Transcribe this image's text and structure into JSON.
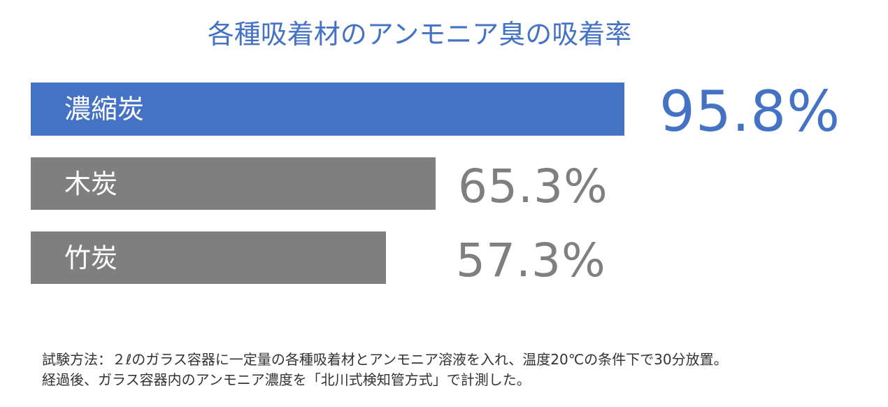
{
  "chart_data": {
    "type": "bar",
    "orientation": "horizontal",
    "title": "各種吸着材のアンモニア臭の吸着率",
    "categories": [
      "濃縮炭",
      "木炭",
      "竹炭"
    ],
    "values": [
      95.8,
      65.3,
      57.3
    ],
    "value_labels": [
      "95.8%",
      "65.3%",
      "57.3%"
    ],
    "xlim": [
      0,
      100
    ],
    "grid": false,
    "colors": [
      "#4472c4",
      "#7f7f7f",
      "#7f7f7f"
    ],
    "value_label_colors": [
      "#4472c4",
      "#7f7f7f",
      "#7f7f7f"
    ]
  },
  "note": {
    "line1": "試験方法：２ℓのガラス容器に一定量の各種吸着材とアンモニア溶液を入れ、温度20℃の条件下で30分放置。",
    "line2": "経過後、ガラス容器内のアンモニア濃度を「北川式検知管方式」で計測した。"
  }
}
